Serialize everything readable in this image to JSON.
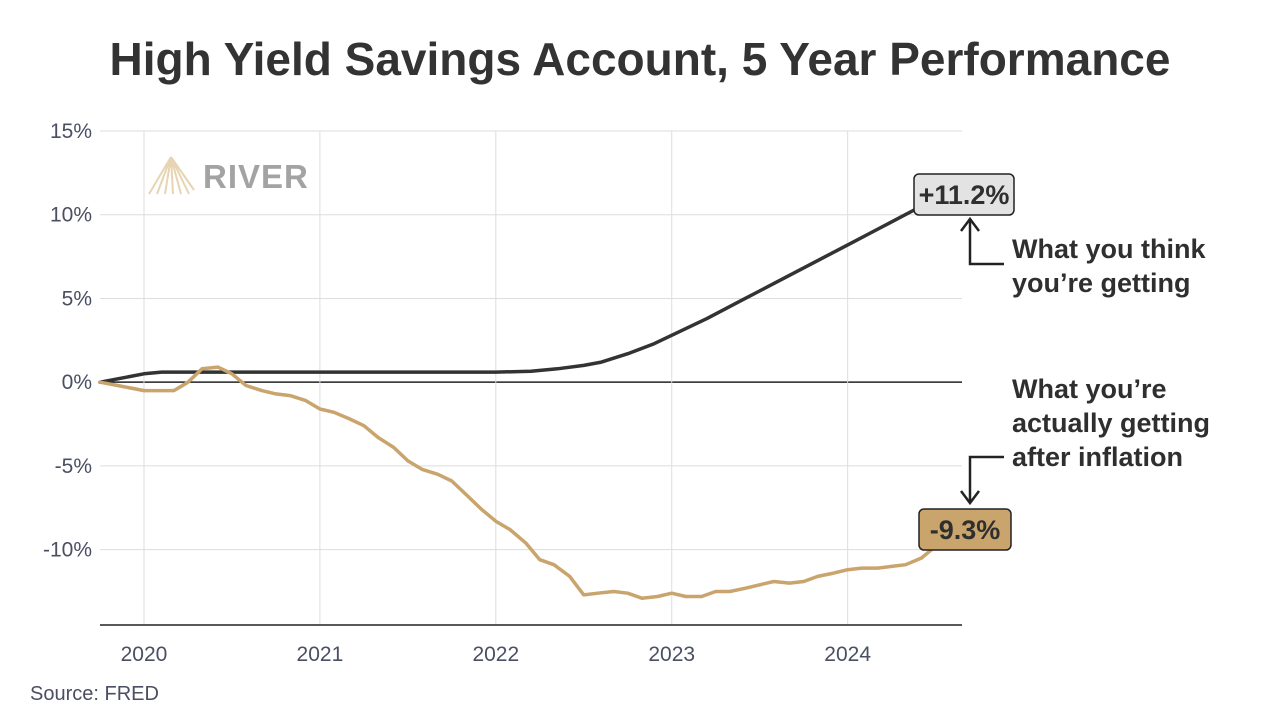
{
  "chart_data": {
    "type": "line",
    "title": "High Yield Savings Account, 5 Year Performance",
    "xlabel": "",
    "ylabel": "",
    "x_ticks": [
      "2020",
      "2021",
      "2022",
      "2023",
      "2024"
    ],
    "y_ticks": [
      "15%",
      "10%",
      "5%",
      "0%",
      "-5%",
      "-10%"
    ],
    "ylim": [
      -14.5,
      15
    ],
    "grid": true,
    "series": [
      {
        "name": "",
        "color": "#333333",
        "points": [
          [
            2019.75,
            0.0
          ],
          [
            2019.9,
            0.3
          ],
          [
            2020.0,
            0.5
          ],
          [
            2020.1,
            0.6
          ],
          [
            2020.2,
            0.6
          ],
          [
            2020.5,
            0.6
          ],
          [
            2020.8,
            0.6
          ],
          [
            2021.2,
            0.6
          ],
          [
            2021.6,
            0.6
          ],
          [
            2022.0,
            0.6
          ],
          [
            2022.2,
            0.65
          ],
          [
            2022.35,
            0.8
          ],
          [
            2022.5,
            1.0
          ],
          [
            2022.6,
            1.2
          ],
          [
            2022.75,
            1.7
          ],
          [
            2022.9,
            2.3
          ],
          [
            2023.0,
            2.8
          ],
          [
            2023.2,
            3.8
          ],
          [
            2023.4,
            4.9
          ],
          [
            2023.6,
            6.0
          ],
          [
            2023.8,
            7.1
          ],
          [
            2024.0,
            8.2
          ],
          [
            2024.2,
            9.3
          ],
          [
            2024.4,
            10.4
          ],
          [
            2024.5,
            11.0
          ],
          [
            2024.55,
            11.2
          ]
        ]
      },
      {
        "name": "",
        "color": "#c9a46c",
        "points": [
          [
            2019.75,
            0.0
          ],
          [
            2019.85,
            -0.2
          ],
          [
            2020.0,
            -0.5
          ],
          [
            2020.17,
            -0.5
          ],
          [
            2020.25,
            0.0
          ],
          [
            2020.33,
            0.8
          ],
          [
            2020.42,
            0.9
          ],
          [
            2020.5,
            0.5
          ],
          [
            2020.58,
            -0.2
          ],
          [
            2020.67,
            -0.5
          ],
          [
            2020.75,
            -0.7
          ],
          [
            2020.83,
            -0.8
          ],
          [
            2020.92,
            -1.1
          ],
          [
            2021.0,
            -1.6
          ],
          [
            2021.08,
            -1.8
          ],
          [
            2021.17,
            -2.2
          ],
          [
            2021.25,
            -2.6
          ],
          [
            2021.33,
            -3.3
          ],
          [
            2021.42,
            -3.9
          ],
          [
            2021.5,
            -4.7
          ],
          [
            2021.58,
            -5.2
          ],
          [
            2021.67,
            -5.5
          ],
          [
            2021.75,
            -5.9
          ],
          [
            2021.83,
            -6.7
          ],
          [
            2021.92,
            -7.6
          ],
          [
            2022.0,
            -8.3
          ],
          [
            2022.08,
            -8.8
          ],
          [
            2022.17,
            -9.6
          ],
          [
            2022.25,
            -10.6
          ],
          [
            2022.33,
            -10.9
          ],
          [
            2022.42,
            -11.6
          ],
          [
            2022.5,
            -12.7
          ],
          [
            2022.58,
            -12.6
          ],
          [
            2022.67,
            -12.5
          ],
          [
            2022.75,
            -12.6
          ],
          [
            2022.83,
            -12.9
          ],
          [
            2022.92,
            -12.8
          ],
          [
            2023.0,
            -12.6
          ],
          [
            2023.08,
            -12.8
          ],
          [
            2023.17,
            -12.8
          ],
          [
            2023.25,
            -12.5
          ],
          [
            2023.33,
            -12.5
          ],
          [
            2023.42,
            -12.3
          ],
          [
            2023.5,
            -12.1
          ],
          [
            2023.58,
            -11.9
          ],
          [
            2023.67,
            -12.0
          ],
          [
            2023.75,
            -11.9
          ],
          [
            2023.83,
            -11.6
          ],
          [
            2023.92,
            -11.4
          ],
          [
            2024.0,
            -11.2
          ],
          [
            2024.08,
            -11.1
          ],
          [
            2024.17,
            -11.1
          ],
          [
            2024.25,
            -11.0
          ],
          [
            2024.33,
            -10.9
          ],
          [
            2024.42,
            -10.5
          ],
          [
            2024.5,
            -9.8
          ],
          [
            2024.55,
            -9.3
          ]
        ]
      }
    ],
    "annotations": [
      {
        "badge": "+11.2%",
        "lines": [
          "What you think",
          "you’re getting"
        ],
        "badge_color": "#e3e3e3"
      },
      {
        "badge": "-9.3%",
        "lines": [
          "What you’re",
          "actually getting",
          "after inflation"
        ],
        "badge_color": "#c9a46c"
      }
    ],
    "source": "Source: FRED",
    "logo_text": "RIVER"
  }
}
